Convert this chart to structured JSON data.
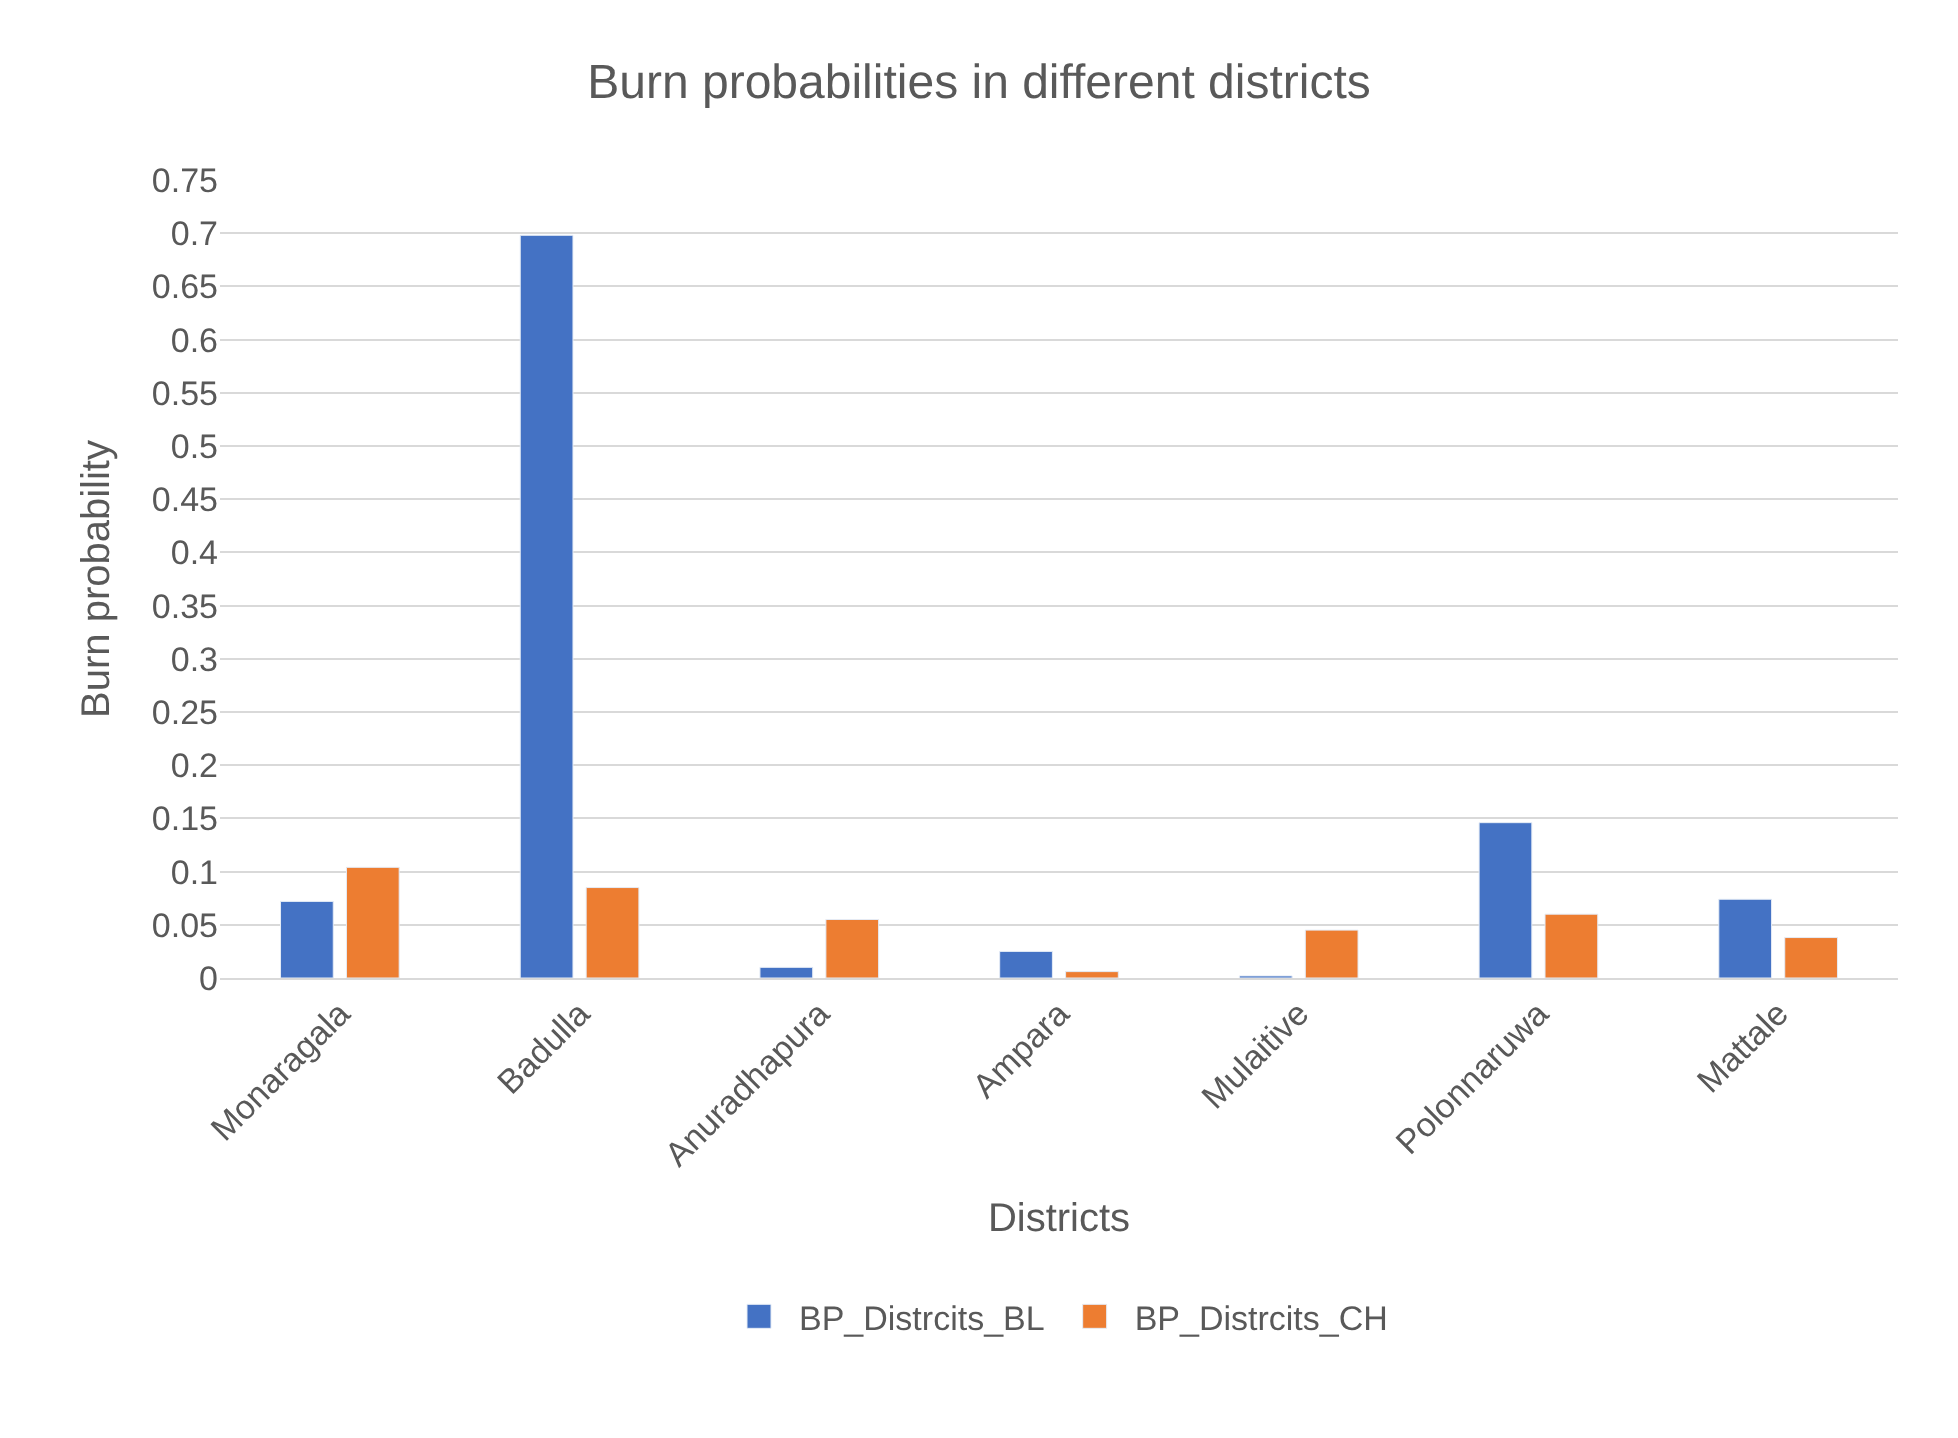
{
  "chart_data": {
    "type": "bar",
    "title": "Burn probabilities in different districts",
    "xlabel": "Districts",
    "ylabel": "Burn probability",
    "categories": [
      "Monaragala",
      "Badulla",
      "Anuradhapura",
      "Ampara",
      "Mulaitive",
      "Polonnaruwa",
      "Mattale"
    ],
    "series": [
      {
        "name": "BP_Distrcits_BL",
        "color": "#4472c4",
        "values": [
          0.072,
          0.698,
          0.01,
          0.025,
          0.002,
          0.146,
          0.074
        ]
      },
      {
        "name": "BP_Distrcits_CH",
        "color": "#ed7d31",
        "values": [
          0.104,
          0.085,
          0.055,
          0.006,
          0.045,
          0.06,
          0.038
        ]
      }
    ],
    "ylim": [
      0,
      0.75
    ],
    "yticks": [
      0,
      0.05,
      0.1,
      0.15,
      0.2,
      0.25,
      0.3,
      0.35,
      0.4,
      0.45,
      0.5,
      0.55,
      0.6,
      0.65,
      0.7,
      0.75
    ],
    "grid": "y",
    "legend": "bottom"
  }
}
